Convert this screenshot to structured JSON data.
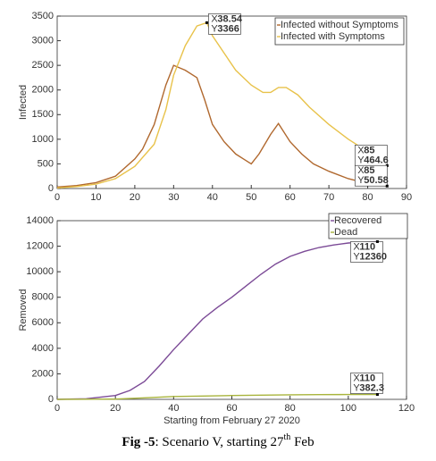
{
  "chart_data": [
    {
      "type": "line",
      "y_label": "Infected",
      "xlim": [
        0,
        90
      ],
      "xticks": [
        0,
        10,
        20,
        30,
        40,
        50,
        60,
        70,
        80,
        90
      ],
      "ylim": [
        0,
        3500
      ],
      "yticks": [
        0,
        500,
        1000,
        1500,
        2000,
        2500,
        3000,
        3500
      ],
      "legend": "upper right",
      "series": [
        {
          "name": "Infected without Symptoms",
          "color": "#b0682e",
          "x": [
            0,
            5,
            10,
            15,
            20,
            22,
            25,
            28,
            30,
            33,
            36,
            38,
            40,
            43,
            46,
            48,
            50,
            52,
            55,
            57,
            60,
            63,
            66,
            70,
            75,
            80,
            85
          ],
          "values": [
            30,
            60,
            120,
            250,
            600,
            800,
            1300,
            2100,
            2500,
            2400,
            2250,
            1800,
            1300,
            950,
            700,
            600,
            500,
            700,
            1100,
            1320,
            950,
            700,
            500,
            350,
            200,
            100,
            50.58
          ]
        },
        {
          "name": "Infected with Symptoms",
          "color": "#e8c24a",
          "x": [
            0,
            5,
            10,
            15,
            20,
            25,
            28,
            30,
            33,
            36,
            38.54,
            40,
            43,
            46,
            50,
            53,
            55,
            57,
            59,
            62,
            65,
            70,
            75,
            80,
            85
          ],
          "values": [
            10,
            40,
            90,
            200,
            450,
            900,
            1600,
            2300,
            2900,
            3300,
            3366,
            3100,
            2750,
            2400,
            2100,
            1950,
            1950,
            2050,
            2050,
            1900,
            1650,
            1300,
            1000,
            750,
            464.6
          ]
        }
      ],
      "datatip_labels": [
        "X",
        "Y"
      ],
      "annotations": [
        {
          "x": 38.54,
          "y": 3366
        },
        {
          "x": 85,
          "y": 464.6
        },
        {
          "x": 85,
          "y": 50.58
        }
      ]
    },
    {
      "type": "line",
      "y_label": "Removed",
      "x_label": "Starting from February 27 2020",
      "xlim": [
        0,
        120
      ],
      "xticks": [
        0,
        20,
        40,
        60,
        80,
        100,
        120
      ],
      "ylim": [
        0,
        14000
      ],
      "yticks": [
        0,
        2000,
        4000,
        6000,
        8000,
        10000,
        12000,
        14000
      ],
      "legend": "upper right",
      "series": [
        {
          "name": "Recovered",
          "color": "#7b4a96",
          "x": [
            0,
            10,
            20,
            25,
            30,
            35,
            40,
            45,
            50,
            55,
            60,
            65,
            70,
            75,
            80,
            85,
            90,
            95,
            100,
            110
          ],
          "values": [
            0,
            50,
            300,
            700,
            1400,
            2600,
            3900,
            5100,
            6300,
            7200,
            8000,
            8900,
            9800,
            10600,
            11200,
            11600,
            11900,
            12100,
            12250,
            12360
          ]
        },
        {
          "name": "Dead",
          "color": "#a8b43c",
          "x": [
            0,
            20,
            30,
            40,
            50,
            60,
            70,
            80,
            90,
            100,
            110
          ],
          "values": [
            0,
            20,
            120,
            220,
            260,
            300,
            330,
            355,
            370,
            378,
            382.3
          ]
        }
      ],
      "datatip_labels": [
        "X",
        "Y"
      ],
      "annotations": [
        {
          "x": 110,
          "y": 12360
        },
        {
          "x": 110,
          "y": 382.3
        }
      ]
    }
  ],
  "caption": {
    "label": "Fig -5",
    "text": ": Scenario V, starting 27",
    "sup": "th",
    "tail": " Feb"
  }
}
